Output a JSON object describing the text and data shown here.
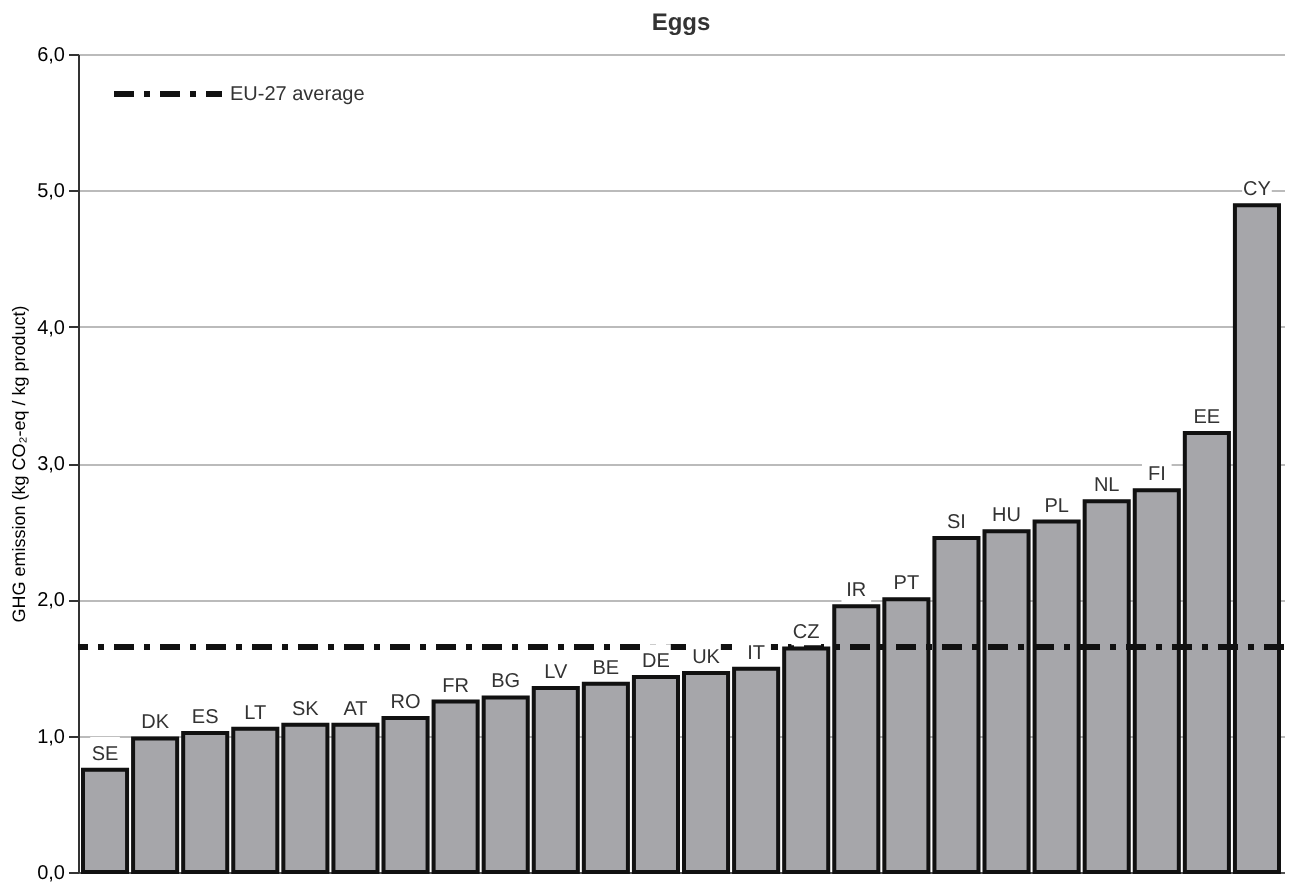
{
  "chart_data": {
    "type": "bar",
    "title": "Eggs",
    "ylabel": "GHG emission (kg CO₂-eq / kg product)",
    "categories": [
      "SE",
      "DK",
      "ES",
      "LT",
      "SK",
      "AT",
      "RO",
      "FR",
      "BG",
      "LV",
      "BE",
      "DE",
      "UK",
      "IT",
      "CZ",
      "IR",
      "PT",
      "SI",
      "HU",
      "PL",
      "NL",
      "FI",
      "EE",
      "CY"
    ],
    "values": [
      0.75,
      0.98,
      1.02,
      1.05,
      1.08,
      1.08,
      1.13,
      1.25,
      1.28,
      1.35,
      1.38,
      1.43,
      1.46,
      1.49,
      1.64,
      1.95,
      2.0,
      2.45,
      2.5,
      2.57,
      2.72,
      2.8,
      3.22,
      4.89
    ],
    "color": "#a6a6aa",
    "ylim": [
      0,
      6
    ],
    "yticks": [
      {
        "value": 0,
        "label": "0,0"
      },
      {
        "value": 1,
        "label": "1,0"
      },
      {
        "value": 2,
        "label": "2,0"
      },
      {
        "value": 3,
        "label": "3,0"
      },
      {
        "value": 4,
        "label": "4,0"
      },
      {
        "value": 5,
        "label": "5,0"
      },
      {
        "value": 6,
        "label": "6,0"
      }
    ],
    "grid": "y",
    "tick_labels": "y",
    "ref_lines": [
      {
        "axis": "y",
        "value": 1.65,
        "label": "EU-27 average",
        "line_style": "dashed",
        "color": "#111111"
      }
    ]
  }
}
